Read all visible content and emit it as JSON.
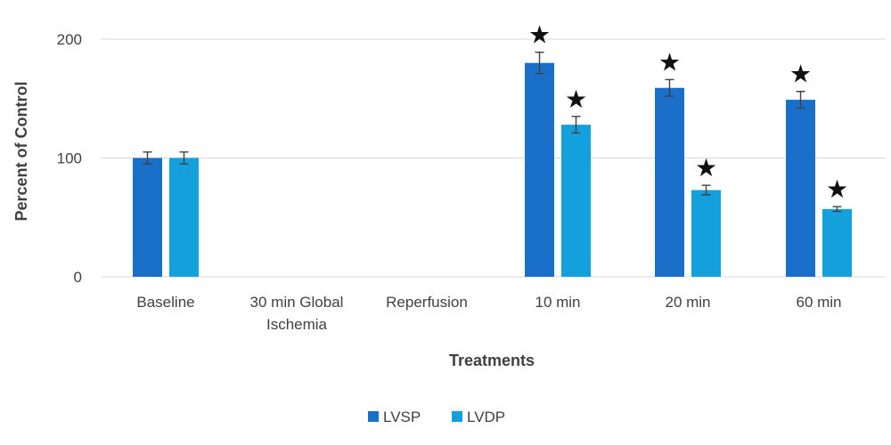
{
  "chart_data": {
    "type": "bar",
    "title": "",
    "xlabel": "Treatments",
    "ylabel": "Percent of Control",
    "ylim": [
      0,
      200
    ],
    "yticks": [
      0,
      100,
      200
    ],
    "grid": true,
    "legend_position": "bottom",
    "categories": [
      [
        "Baseline"
      ],
      [
        "30 min Global",
        "Ischemia"
      ],
      [
        "Reperfusion"
      ],
      [
        "10 min"
      ],
      [
        "20 min"
      ],
      [
        "60 min"
      ]
    ],
    "significance_marker": "★",
    "series": [
      {
        "name": "LVSP",
        "color": "#1a6fc9",
        "values": [
          100,
          null,
          null,
          180,
          159,
          149
        ],
        "errors": [
          5,
          null,
          null,
          9,
          7,
          7
        ],
        "significant": [
          false,
          false,
          false,
          true,
          true,
          true
        ]
      },
      {
        "name": "LVDP",
        "color": "#14a0dc",
        "values": [
          100,
          null,
          null,
          128,
          73,
          57
        ],
        "errors": [
          5,
          null,
          null,
          7,
          4,
          2
        ],
        "significant": [
          false,
          false,
          false,
          true,
          true,
          true
        ]
      }
    ]
  }
}
